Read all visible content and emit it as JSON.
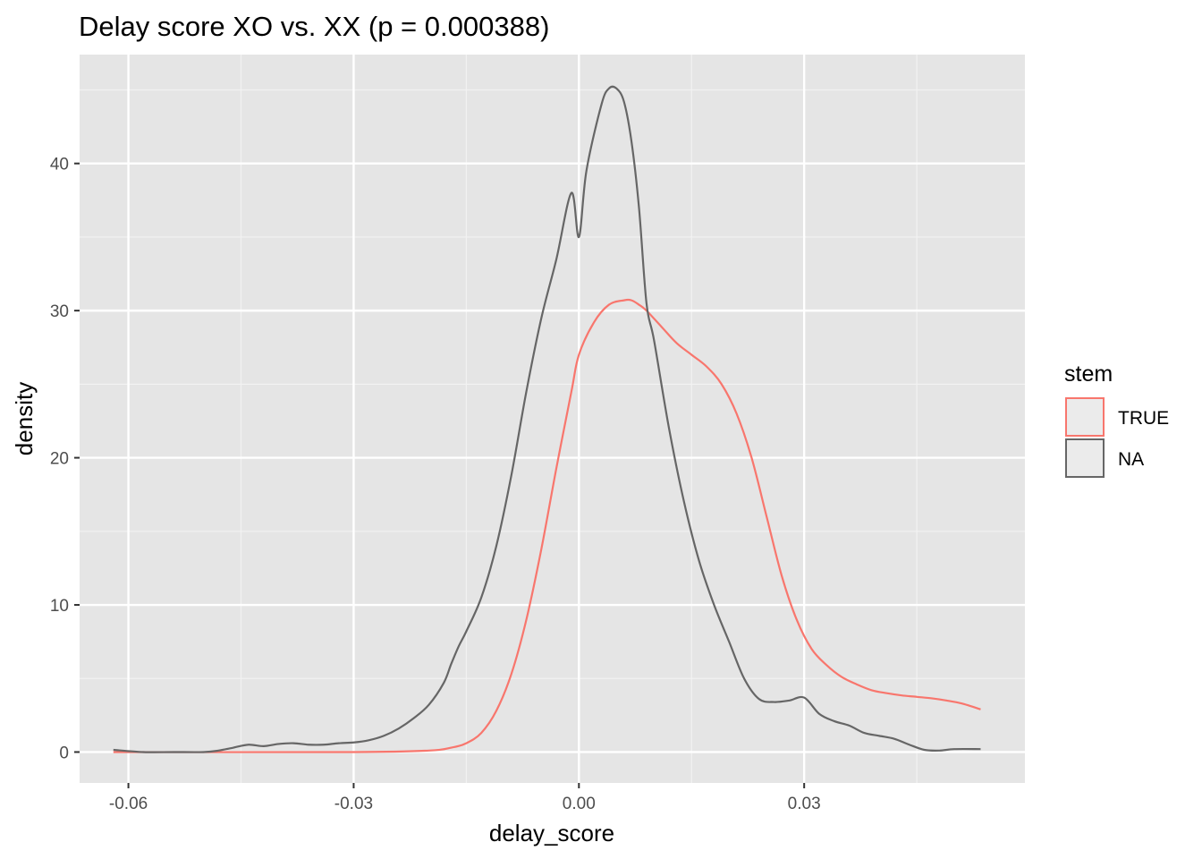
{
  "chart_data": {
    "type": "line",
    "title": "Delay score XO vs. XX (p = 0.000388)",
    "xlabel": "delay_score",
    "ylabel": "density",
    "xlim": [
      -0.0665,
      0.0594
    ],
    "ylim": [
      -2.1,
      47.4
    ],
    "x_ticks": [
      -0.06,
      -0.03,
      0.0,
      0.03
    ],
    "x_tick_labels": [
      "-0.06",
      "-0.03",
      "0.00",
      "0.03"
    ],
    "y_ticks": [
      0,
      10,
      20,
      30,
      40
    ],
    "y_tick_labels": [
      "0",
      "10",
      "20",
      "30",
      "40"
    ],
    "grid": true,
    "legend": {
      "title": "stem",
      "position": "right",
      "entries": [
        "TRUE",
        "NA"
      ]
    },
    "series": [
      {
        "name": "TRUE",
        "color": "#f8766d",
        "x": [
          -0.062,
          -0.03,
          -0.02,
          -0.017,
          -0.015,
          -0.013,
          -0.011,
          -0.009,
          -0.007,
          -0.005,
          -0.003,
          -0.001,
          0.0,
          0.002,
          0.004,
          0.006,
          0.007,
          0.008,
          0.009,
          0.011,
          0.013,
          0.015,
          0.017,
          0.019,
          0.021,
          0.023,
          0.025,
          0.027,
          0.029,
          0.031,
          0.033,
          0.035,
          0.037,
          0.039,
          0.041,
          0.043,
          0.045,
          0.047,
          0.049,
          0.051,
          0.0535
        ],
        "y": [
          0.0,
          0.0,
          0.1,
          0.3,
          0.6,
          1.3,
          2.8,
          5.3,
          9.0,
          13.8,
          19.3,
          24.5,
          27.0,
          29.2,
          30.4,
          30.7,
          30.7,
          30.4,
          30.0,
          28.9,
          27.8,
          27.0,
          26.2,
          25.0,
          23.0,
          20.0,
          16.0,
          12.0,
          9.0,
          7.0,
          5.9,
          5.1,
          4.6,
          4.2,
          4.0,
          3.85,
          3.75,
          3.65,
          3.5,
          3.3,
          2.9
        ]
      },
      {
        "name": "NA",
        "color": "#666666",
        "x": [
          -0.062,
          -0.058,
          -0.054,
          -0.05,
          -0.048,
          -0.046,
          -0.044,
          -0.042,
          -0.04,
          -0.038,
          -0.036,
          -0.034,
          -0.032,
          -0.03,
          -0.028,
          -0.026,
          -0.024,
          -0.022,
          -0.02,
          -0.018,
          -0.017,
          -0.016,
          -0.015,
          -0.013,
          -0.011,
          -0.009,
          -0.007,
          -0.005,
          -0.003,
          -0.001,
          0.0,
          0.001,
          0.003,
          0.004,
          0.005,
          0.006,
          0.007,
          0.008,
          0.009,
          0.01,
          0.012,
          0.014,
          0.016,
          0.018,
          0.02,
          0.022,
          0.024,
          0.026,
          0.028,
          0.03,
          0.032,
          0.034,
          0.036,
          0.038,
          0.04,
          0.042,
          0.044,
          0.046,
          0.048,
          0.05,
          0.0535
        ],
        "y": [
          0.15,
          0.0,
          0.0,
          0.0,
          0.1,
          0.3,
          0.5,
          0.4,
          0.55,
          0.6,
          0.5,
          0.5,
          0.6,
          0.65,
          0.8,
          1.1,
          1.6,
          2.3,
          3.2,
          4.7,
          6.0,
          7.2,
          8.2,
          10.5,
          14.0,
          18.8,
          24.5,
          29.5,
          33.5,
          38.0,
          35.0,
          39.5,
          44.0,
          45.1,
          45.1,
          44.2,
          41.5,
          37.0,
          30.5,
          28.0,
          22.0,
          17.0,
          13.0,
          10.0,
          7.5,
          5.0,
          3.6,
          3.4,
          3.5,
          3.7,
          2.6,
          2.1,
          1.8,
          1.3,
          1.1,
          0.9,
          0.5,
          0.15,
          0.1,
          0.2,
          0.2
        ]
      }
    ]
  }
}
